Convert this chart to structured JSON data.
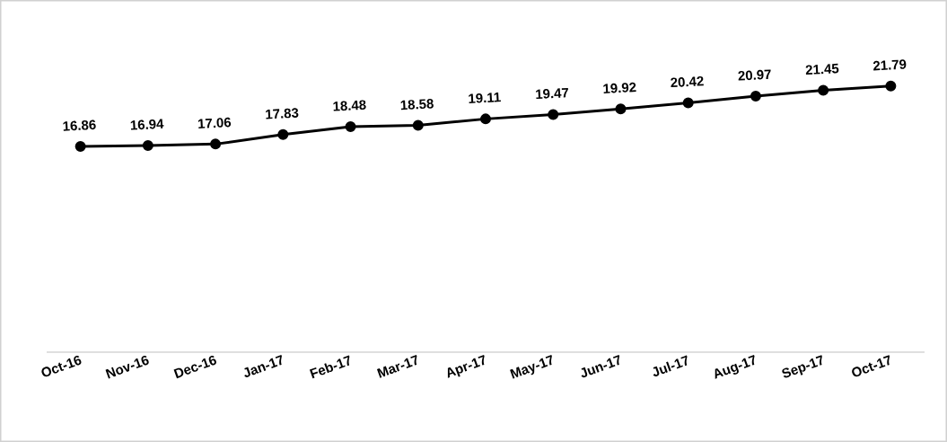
{
  "chart_data": {
    "type": "line",
    "categories": [
      "Oct-16",
      "Nov-16",
      "Dec-16",
      "Jan-17",
      "Feb-17",
      "Mar-17",
      "Apr-17",
      "May-17",
      "Jun-17",
      "Jul-17",
      "Aug-17",
      "Sep-17",
      "Oct-17"
    ],
    "series": [
      {
        "color": "#000000",
        "values": [
          16.86,
          16.94,
          17.06,
          17.83,
          18.48,
          18.58,
          19.11,
          19.47,
          19.92,
          20.42,
          20.97,
          21.45,
          21.79
        ]
      }
    ],
    "data_labels": true,
    "marker": "circle",
    "line_style": "solid"
  }
}
